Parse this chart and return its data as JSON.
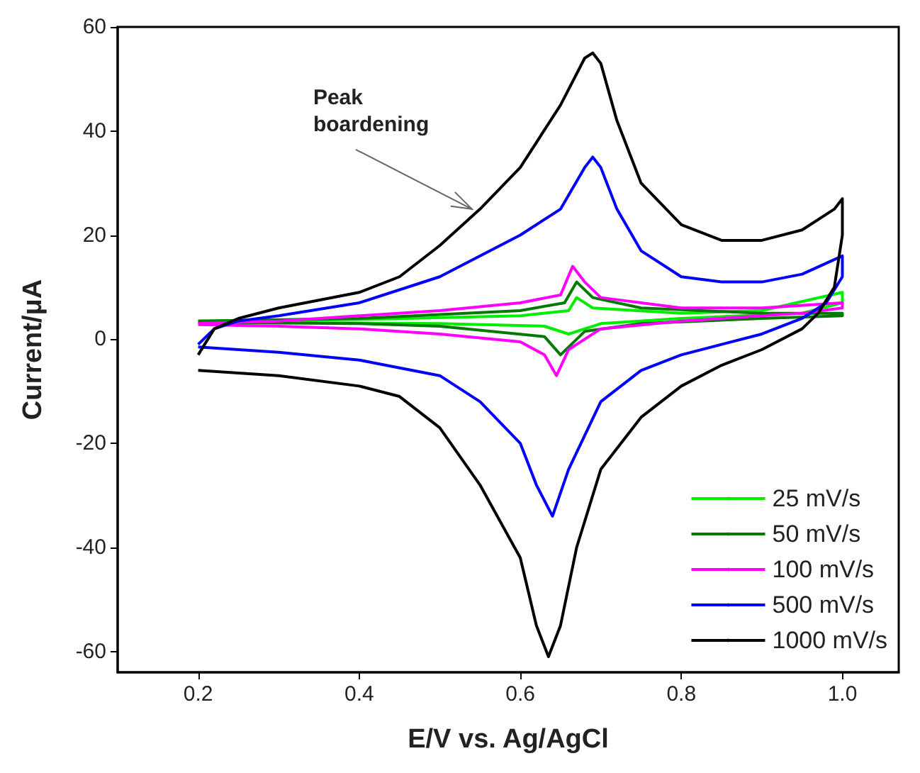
{
  "chart_data": {
    "type": "line",
    "xlabel": "E/V vs. Ag/AgCl",
    "ylabel": "Current/μA",
    "xlim": [
      0.1,
      1.07
    ],
    "ylim": [
      -64,
      60
    ],
    "xticks": [
      0.2,
      0.4,
      0.6,
      0.8,
      {
        "value": 1,
        "label": "1.0"
      }
    ],
    "yticks": [
      -60,
      -40,
      -20,
      0,
      20,
      40,
      60
    ],
    "grid": false,
    "legend": "bottom right",
    "marker": "none",
    "line_style": "solid",
    "annotations": [
      {
        "text": "Peak boardening",
        "x": 0.54,
        "y": 25
      }
    ],
    "series": [
      {
        "name": "25 mV/s",
        "color": "#00ee00",
        "x": [
          0.2,
          0.4,
          0.6,
          0.66,
          0.67,
          0.69,
          0.8,
          0.9,
          1.0,
          1.0,
          0.95,
          0.8,
          0.7,
          0.66,
          0.63,
          0.5,
          0.2
        ],
        "values": [
          3.5,
          3.8,
          4.5,
          5.5,
          8,
          6,
          5,
          5.5,
          9,
          7,
          5,
          4,
          3,
          1,
          2.5,
          3,
          3.3
        ]
      },
      {
        "name": "50 mV/s",
        "color": "#007a00",
        "x": [
          0.2,
          0.4,
          0.6,
          0.655,
          0.67,
          0.69,
          0.75,
          0.9,
          1.0,
          1.0,
          0.9,
          0.75,
          0.68,
          0.65,
          0.63,
          0.5,
          0.4,
          0.2
        ],
        "values": [
          3.5,
          4,
          5.5,
          7,
          11,
          8,
          6,
          5,
          5,
          4.5,
          4,
          3,
          1.5,
          -3,
          0.5,
          2.5,
          3,
          3.2
        ]
      },
      {
        "name": "100 mV/s",
        "color": "#ff00ff",
        "x": [
          0.2,
          0.3,
          0.4,
          0.5,
          0.6,
          0.65,
          0.665,
          0.68,
          0.7,
          0.8,
          0.9,
          1.0,
          1.0,
          0.95,
          0.9,
          0.8,
          0.7,
          0.66,
          0.645,
          0.63,
          0.6,
          0.5,
          0.4,
          0.3,
          0.2
        ],
        "values": [
          3,
          3.5,
          4.5,
          5.5,
          7,
          8.5,
          14,
          11,
          8,
          6,
          6,
          7,
          6,
          5,
          4.5,
          3.5,
          2,
          -2,
          -7,
          -3,
          -0.5,
          1,
          2,
          2.5,
          2.8
        ]
      },
      {
        "name": "500 mV/s",
        "color": "#0000ff",
        "x": [
          0.2,
          0.22,
          0.25,
          0.3,
          0.4,
          0.5,
          0.6,
          0.65,
          0.68,
          0.69,
          0.7,
          0.72,
          0.75,
          0.8,
          0.85,
          0.9,
          0.95,
          1.0,
          1.0,
          0.98,
          0.95,
          0.9,
          0.85,
          0.8,
          0.75,
          0.7,
          0.66,
          0.64,
          0.62,
          0.6,
          0.55,
          0.5,
          0.4,
          0.3,
          0.2
        ],
        "values": [
          -1,
          2,
          3.5,
          4.5,
          7,
          12,
          20,
          25,
          33,
          35,
          33,
          25,
          17,
          12,
          11,
          11,
          12.5,
          16,
          12,
          7,
          4,
          1,
          -1,
          -3,
          -6,
          -12,
          -25,
          -34,
          -28,
          -20,
          -12,
          -7,
          -4,
          -2.5,
          -1.5
        ]
      },
      {
        "name": "1000 mV/s",
        "color": "#000000",
        "x": [
          0.2,
          0.22,
          0.25,
          0.3,
          0.4,
          0.45,
          0.5,
          0.55,
          0.6,
          0.65,
          0.68,
          0.69,
          0.7,
          0.72,
          0.75,
          0.8,
          0.85,
          0.9,
          0.95,
          0.99,
          1.0,
          1.0,
          0.99,
          0.97,
          0.95,
          0.9,
          0.85,
          0.8,
          0.75,
          0.7,
          0.67,
          0.65,
          0.635,
          0.62,
          0.6,
          0.55,
          0.5,
          0.45,
          0.4,
          0.3,
          0.2
        ],
        "values": [
          -3,
          2,
          4,
          6,
          9,
          12,
          18,
          25,
          33,
          45,
          54,
          55,
          53,
          42,
          30,
          22,
          19,
          19,
          21,
          25,
          27,
          20,
          10,
          5,
          2,
          -2,
          -5,
          -9,
          -15,
          -25,
          -40,
          -55,
          -61,
          -55,
          -42,
          -28,
          -17,
          -11,
          -9,
          -7,
          -6
        ]
      }
    ]
  }
}
